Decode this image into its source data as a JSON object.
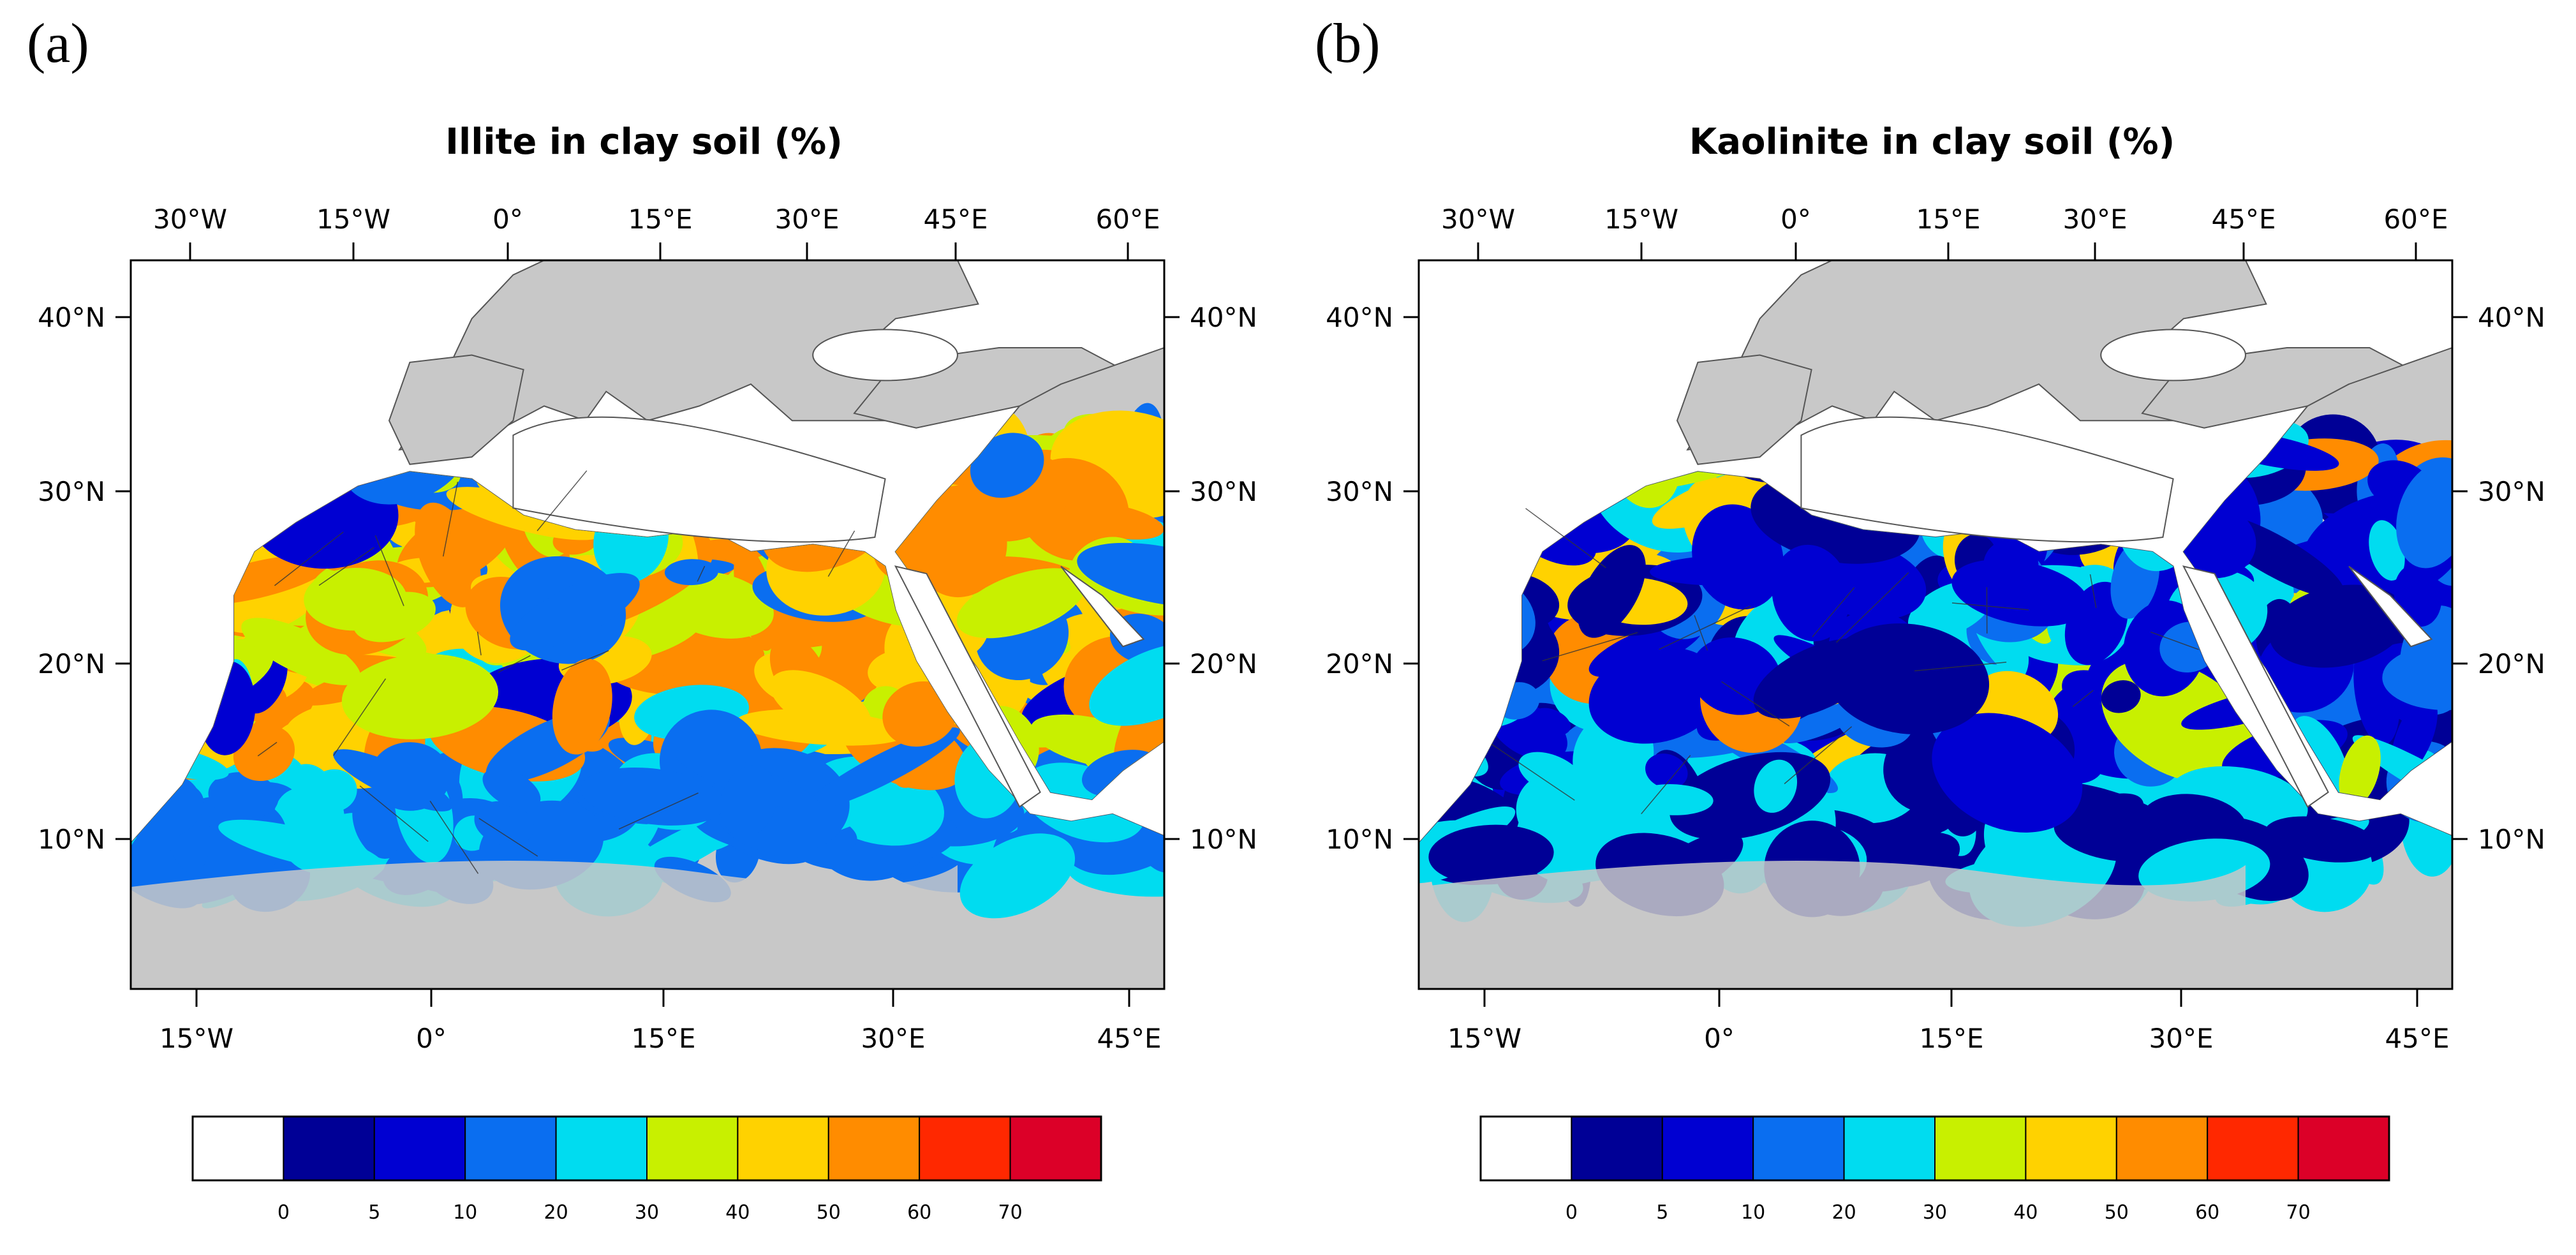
{
  "panels": [
    {
      "id": "a",
      "letter": "(a)",
      "title": "Illite in clay soil (%)",
      "top_lon_ticks": [
        "30°W",
        "15°W",
        "0°",
        "15°E",
        "30°E",
        "45°E",
        "60°E"
      ],
      "bottom_lon_ticks": [
        "15°W",
        "0°",
        "15°E",
        "30°E",
        "45°E"
      ],
      "lat_ticks": [
        "40°N",
        "30°N",
        "20°N",
        "10°N"
      ],
      "colorbar_labels": [
        "0",
        "5",
        "10",
        "20",
        "30",
        "40",
        "50",
        "60",
        "70"
      ],
      "dominant": "orange"
    },
    {
      "id": "b",
      "letter": "(b)",
      "title": "Kaolinite in clay soil (%)",
      "top_lon_ticks": [
        "30°W",
        "15°W",
        "0°",
        "15°E",
        "30°E",
        "45°E",
        "60°E"
      ],
      "bottom_lon_ticks": [
        "15°W",
        "0°",
        "15°E",
        "30°E",
        "45°E"
      ],
      "lat_ticks": [
        "40°N",
        "30°N",
        "20°N",
        "10°N"
      ],
      "colorbar_labels": [
        "0",
        "5",
        "10",
        "20",
        "30",
        "40",
        "50",
        "60",
        "70"
      ],
      "dominant": "blue"
    }
  ],
  "colorbar_colors": [
    "#ffffff",
    "#000096",
    "#0000d2",
    "#0a6ef0",
    "#00dcf0",
    "#c8f000",
    "#ffd200",
    "#ff8c00",
    "#ff2800",
    "#dc0028"
  ],
  "land_color": "#c8c8c8",
  "sea_color": "#ffffff"
}
